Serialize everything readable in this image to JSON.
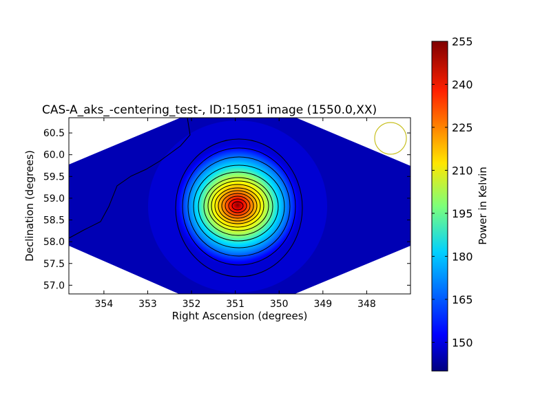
{
  "chart_data": {
    "type": "heatmap",
    "title": "CAS-A_aks_-centering_test-, ID:15051 image (1550.0,XX)",
    "xlabel": "Right Ascension (degrees)",
    "ylabel": "Declination (degrees)",
    "xlim": [
      354.8,
      347.0
    ],
    "ylim": [
      56.8,
      60.85
    ],
    "x_ticks": [
      354,
      353,
      352,
      351,
      350,
      349,
      348
    ],
    "y_ticks": [
      57.0,
      57.5,
      58.0,
      58.5,
      59.0,
      59.5,
      60.0,
      60.5
    ],
    "grid": false,
    "colormap": "jet",
    "peak": {
      "ra": 350.85,
      "dec": 58.85,
      "value": 255
    },
    "background_value": 143,
    "beam": {
      "ra": 347.45,
      "dec": 60.4,
      "color": "#c8c020"
    },
    "colorbar": {
      "label": "Power in Kelvin",
      "min": 140,
      "max": 255,
      "ticks": [
        150,
        165,
        180,
        195,
        210,
        225,
        240,
        255
      ]
    }
  }
}
